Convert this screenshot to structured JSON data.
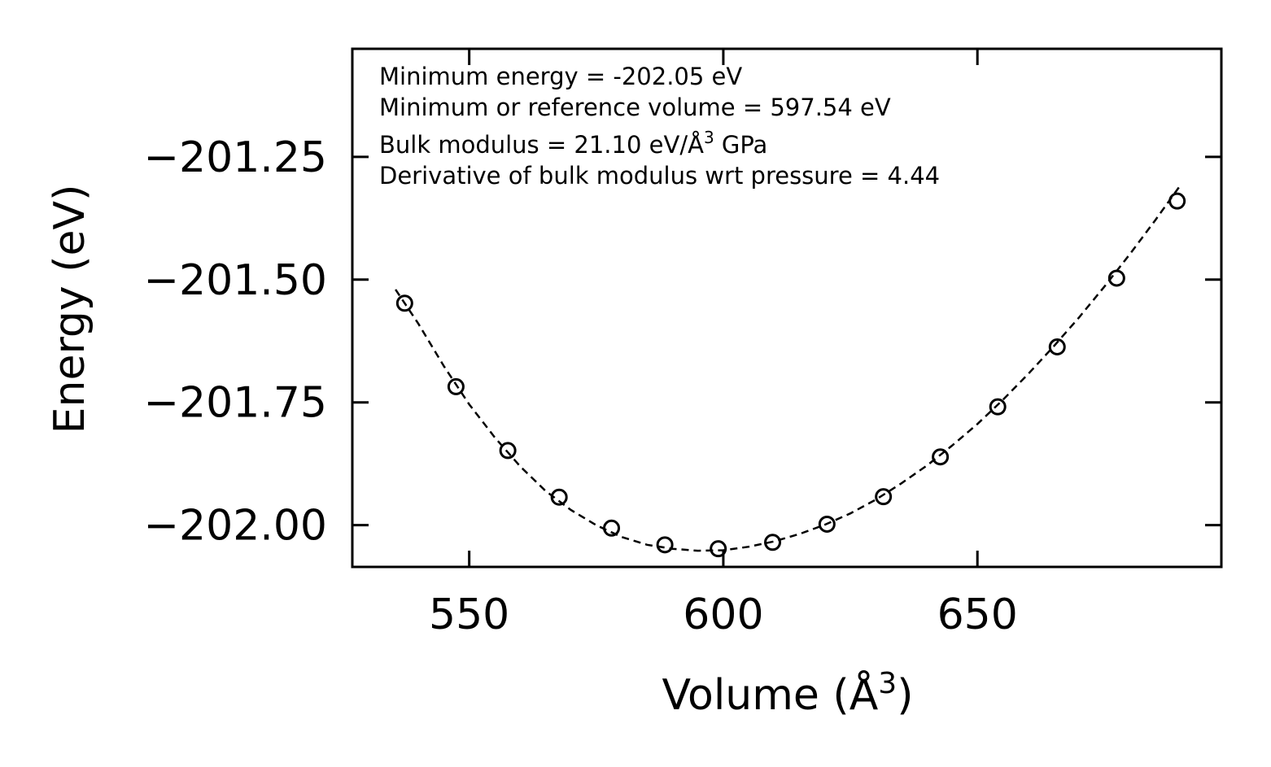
{
  "chart_data": {
    "type": "scatter",
    "title": "",
    "xlabel_main": "Volume (Å",
    "xlabel_sup": "3",
    "xlabel_tail": ")",
    "ylabel": "Energy (eV)",
    "xlim": [
      527,
      698
    ],
    "ylim": [
      -202.085,
      -201.03
    ],
    "xticks": [
      550,
      600,
      650
    ],
    "xtick_labels": [
      "550",
      "600",
      "650"
    ],
    "yticks": [
      -201.25,
      -201.5,
      -201.75,
      -202.0
    ],
    "ytick_labels": [
      "−201.25",
      "−201.50",
      "−201.75",
      "−202.00"
    ],
    "series": [
      {
        "name": "data",
        "marker": "open-circle",
        "x": [
          537.3,
          547.4,
          557.6,
          567.7,
          578.0,
          588.5,
          599.0,
          609.7,
          620.4,
          631.5,
          642.7,
          654.0,
          665.7,
          677.4,
          689.3
        ],
        "y": [
          -201.548,
          -201.718,
          -201.848,
          -201.943,
          -202.006,
          -202.04,
          -202.048,
          -202.035,
          -201.998,
          -201.942,
          -201.861,
          -201.759,
          -201.637,
          -201.497,
          -201.34
        ]
      },
      {
        "name": "fit",
        "style": "dashed",
        "x": [
          535.5,
          540,
          545,
          550,
          555,
          560,
          565,
          570,
          575,
          580,
          585,
          590,
          595,
          600,
          605,
          610,
          615,
          620,
          625,
          630,
          635,
          640,
          645,
          650,
          655,
          660,
          665,
          670,
          675,
          680,
          685,
          690
        ],
        "y": [
          -201.52,
          -201.59,
          -201.676,
          -201.754,
          -201.821,
          -201.88,
          -201.93,
          -201.969,
          -202.0,
          -202.024,
          -202.04,
          -202.048,
          -202.052,
          -202.051,
          -202.044,
          -202.033,
          -202.018,
          -201.999,
          -201.976,
          -201.948,
          -201.915,
          -201.879,
          -201.838,
          -201.794,
          -201.745,
          -201.692,
          -201.636,
          -201.577,
          -201.514,
          -201.448,
          -201.379,
          -201.307
        ]
      }
    ],
    "annotations": {
      "line1": "Minimum energy = -202.05 eV",
      "line2": "Minimum or reference volume = 597.54 eV",
      "line3_main": "Bulk modulus = 21.10 eV/Å",
      "line3_sup": "3",
      "line3_tail": " GPa",
      "line4": "Derivative of bulk modulus wrt pressure = 4.44"
    },
    "grid": false,
    "legend": "none"
  }
}
